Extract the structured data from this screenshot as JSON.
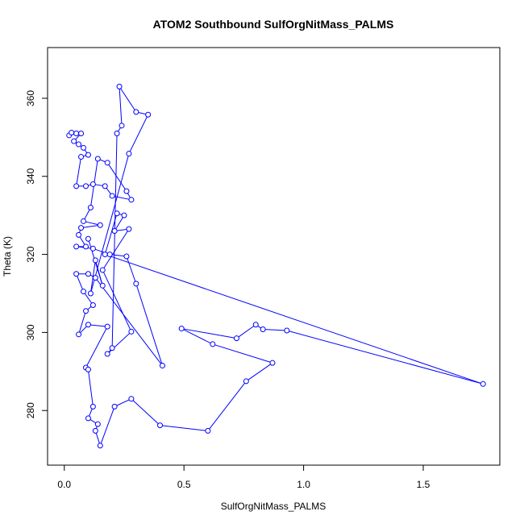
{
  "chart_data": {
    "type": "scatter",
    "title": "ATOM2 Southbound SulfOrgNitMass_PALMS",
    "xlabel": "SulfOrgNitMass_PALMS",
    "ylabel": "Theta (K)",
    "xlim": [
      -0.07,
      1.82
    ],
    "ylim": [
      266,
      373
    ],
    "x_ticks": [
      0.0,
      0.5,
      1.0,
      1.5
    ],
    "x_tick_labels": [
      "0.0",
      "0.5",
      "1.0",
      "1.5"
    ],
    "y_ticks": [
      280,
      300,
      320,
      340,
      360
    ],
    "y_tick_labels": [
      "280",
      "300",
      "320",
      "340",
      "360"
    ],
    "grid": false,
    "legend": "none",
    "color": "#0000ff",
    "series": [
      {
        "style": "line-and-points",
        "points": [
          [
            0.02,
            350.5
          ],
          [
            0.03,
            351.2
          ],
          [
            0.05,
            351.0
          ],
          [
            0.07,
            351.0
          ],
          [
            0.04,
            349.0
          ],
          [
            0.06,
            348.2
          ],
          [
            0.08,
            347.3
          ],
          [
            0.1,
            345.5
          ],
          [
            0.07,
            345.0
          ],
          [
            0.05,
            337.5
          ],
          [
            0.09,
            337.5
          ],
          [
            0.12,
            338.0
          ],
          [
            0.17,
            337.5
          ],
          [
            0.2,
            335.0
          ],
          [
            0.28,
            334.0
          ],
          [
            0.26,
            336.2
          ],
          [
            0.18,
            343.5
          ],
          [
            0.14,
            344.5
          ],
          [
            0.11,
            332.0
          ],
          [
            0.08,
            328.5
          ],
          [
            0.15,
            327.5
          ],
          [
            0.07,
            326.8
          ],
          [
            0.06,
            325.0
          ],
          [
            0.09,
            322.0
          ],
          [
            0.05,
            322.0
          ],
          [
            0.12,
            321.5
          ],
          [
            0.19,
            320.0
          ],
          [
            0.26,
            319.5
          ],
          [
            0.3,
            312.5
          ],
          [
            0.41,
            291.5
          ],
          [
            0.13,
            314.0
          ],
          [
            0.1,
            315.0
          ],
          [
            0.05,
            315.0
          ],
          [
            0.08,
            310.5
          ],
          [
            0.12,
            307.0
          ],
          [
            0.09,
            305.5
          ],
          [
            0.06,
            299.5
          ],
          [
            0.1,
            302.0
          ],
          [
            0.18,
            301.5
          ],
          [
            0.09,
            291.0
          ],
          [
            0.1,
            290.5
          ],
          [
            0.12,
            281.0
          ],
          [
            0.1,
            278.0
          ],
          [
            0.14,
            276.5
          ],
          [
            0.13,
            274.8
          ],
          [
            0.15,
            271.0
          ],
          [
            0.21,
            281.0
          ],
          [
            0.28,
            283.0
          ],
          [
            0.4,
            276.2
          ],
          [
            0.6,
            274.8
          ],
          [
            0.76,
            287.5
          ],
          [
            0.87,
            292.2
          ],
          [
            0.62,
            297.0
          ],
          [
            0.49,
            301.0
          ],
          [
            0.72,
            298.5
          ],
          [
            0.8,
            302.0
          ],
          [
            0.83,
            300.8
          ],
          [
            0.93,
            300.5
          ],
          [
            1.75,
            286.8
          ],
          [
            0.17,
            320.0
          ],
          [
            0.22,
            330.5
          ],
          [
            0.25,
            330.0
          ],
          [
            0.21,
            326.0
          ],
          [
            0.27,
            326.5
          ],
          [
            0.16,
            316.0
          ],
          [
            0.28,
            300.2
          ],
          [
            0.18,
            294.5
          ],
          [
            0.2,
            296.0
          ],
          [
            0.22,
            351.0
          ],
          [
            0.24,
            353.0
          ],
          [
            0.23,
            363.0
          ],
          [
            0.3,
            356.5
          ],
          [
            0.35,
            355.8
          ],
          [
            0.27,
            345.8
          ],
          [
            0.11,
            310.0
          ],
          [
            0.13,
            318.5
          ],
          [
            0.16,
            312.0
          ],
          [
            0.1,
            324.0
          ]
        ]
      }
    ]
  }
}
